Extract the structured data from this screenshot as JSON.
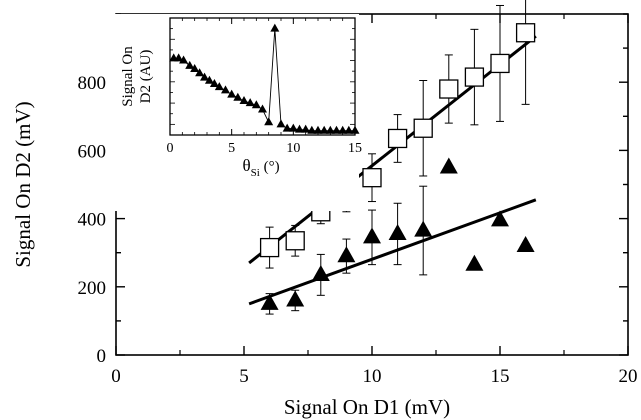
{
  "chart_data": [
    {
      "type": "scatter",
      "xlabel": "Signal On D1 (mV)",
      "ylabel": "Signal On D2 (mV)",
      "xlim": [
        0,
        20
      ],
      "ylim": [
        0,
        1000
      ],
      "xticks": [
        0,
        5,
        10,
        15,
        20
      ],
      "yticks": [
        0,
        200,
        400,
        600,
        800
      ],
      "grid": false,
      "series": [
        {
          "marker": "open-square",
          "x": [
            6,
            7,
            8,
            9,
            10,
            11,
            12,
            13,
            14,
            15,
            16
          ],
          "y": [
            315,
            335,
            420,
            475,
            520,
            635,
            665,
            780,
            815,
            855,
            945
          ],
          "err": [
            60,
            45,
            35,
            55,
            70,
            70,
            140,
            100,
            140,
            170,
            210
          ],
          "fit": {
            "x": [
              5.2,
              16.4
            ],
            "y": [
              270,
              935
            ]
          }
        },
        {
          "marker": "filled-triangle",
          "x": [
            6,
            7,
            8,
            9,
            10,
            11,
            12,
            13,
            14,
            15,
            16
          ],
          "y": [
            150,
            160,
            235,
            290,
            345,
            355,
            365,
            550,
            265,
            395,
            320
          ],
          "err": [
            30,
            30,
            60,
            50,
            80,
            90,
            130,
            0,
            0,
            0,
            0
          ],
          "fit": {
            "x": [
              5.2,
              16.4
            ],
            "y": [
              150,
              455
            ]
          }
        }
      ]
    },
    {
      "type": "line",
      "inset": true,
      "xlabel_main": "θ",
      "xlabel_sub": "Si",
      "xlabel_unit": "(°)",
      "ylabel_lines": [
        "Signal On",
        "D2 (AU)"
      ],
      "xlim": [
        0,
        15
      ],
      "xticks": [
        0,
        5,
        10,
        15
      ],
      "y_ticks_labeled": false,
      "marker": "filled-triangle",
      "x": [
        0.3,
        0.7,
        1.1,
        1.6,
        2.0,
        2.4,
        2.8,
        3.2,
        3.6,
        4.0,
        4.5,
        5.0,
        5.5,
        6.0,
        6.5,
        7.0,
        7.5,
        8.0,
        8.5,
        9.0,
        9.5,
        10.0,
        10.5,
        11.0,
        11.5,
        12.0,
        12.5,
        13.0,
        13.5,
        14.0,
        14.5,
        15.0
      ],
      "y": [
        0.72,
        0.72,
        0.7,
        0.65,
        0.62,
        0.58,
        0.54,
        0.51,
        0.48,
        0.45,
        0.42,
        0.38,
        0.35,
        0.32,
        0.3,
        0.28,
        0.24,
        0.12,
        1.0,
        0.1,
        0.06,
        0.06,
        0.05,
        0.05,
        0.04,
        0.04,
        0.04,
        0.04,
        0.04,
        0.04,
        0.04,
        0.04
      ],
      "yrange": [
        0,
        1.1
      ]
    }
  ]
}
